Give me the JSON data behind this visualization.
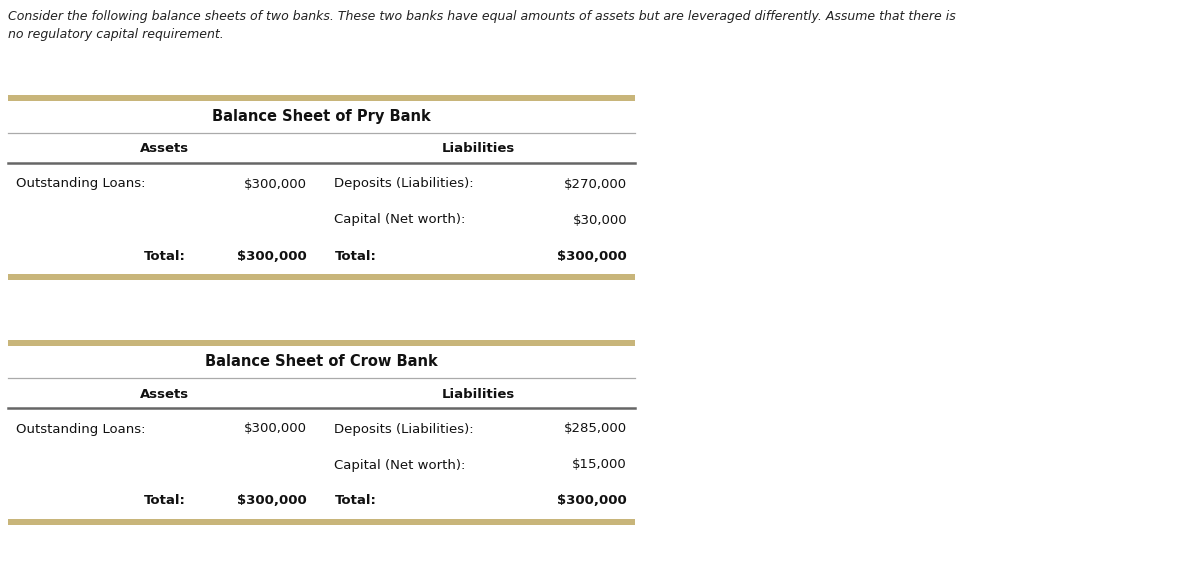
{
  "intro_text_line1": "Consider the following balance sheets of two banks. These two banks have equal amounts of assets but are leveraged differently. Assume that there is",
  "intro_text_line2": "no regulatory capital requirement.",
  "bg_color": "#ffffff",
  "text_color": "#222222",
  "gold_color": "#c8b57a",
  "line_color_thin": "#aaaaaa",
  "line_color_thick": "#666666",
  "pry_bank": {
    "title": "Balance Sheet of Pry Bank",
    "col_headers": [
      "Assets",
      "Liabilities"
    ],
    "rows": [
      [
        "Outstanding Loans:",
        "$300,000",
        "Deposits (Liabilities):",
        "$270,000"
      ],
      [
        "",
        "",
        "Capital (Net worth):",
        "$30,000"
      ],
      [
        "Total:",
        "$300,000",
        "Total:",
        "$300,000"
      ]
    ]
  },
  "crow_bank": {
    "title": "Balance Sheet of Crow Bank",
    "col_headers": [
      "Assets",
      "Liabilities"
    ],
    "rows": [
      [
        "Outstanding Loans:",
        "$300,000",
        "Deposits (Liabilities):",
        "$285,000"
      ],
      [
        "",
        "",
        "Capital (Net worth):",
        "$15,000"
      ],
      [
        "Total:",
        "$300,000",
        "Total:",
        "$300,000"
      ]
    ]
  },
  "fig_width": 12.0,
  "fig_height": 5.84,
  "dpi": 100
}
